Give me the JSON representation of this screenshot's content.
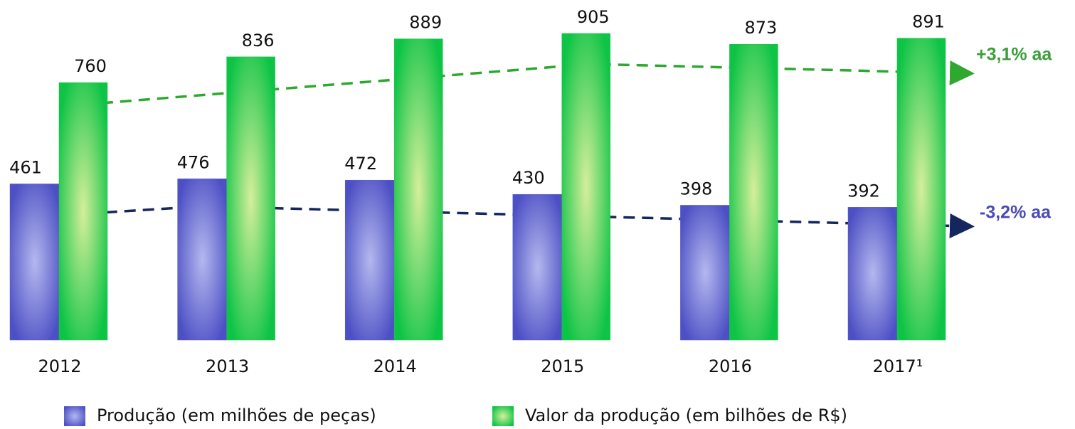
{
  "chart_data": {
    "type": "bar",
    "categories": [
      "2012",
      "2013",
      "2014",
      "2015",
      "2016",
      "2017¹"
    ],
    "series": [
      {
        "name": "Produção (em milhões de peças)",
        "color": "#5a5ecf",
        "values": [
          461,
          476,
          472,
          430,
          398,
          392
        ]
      },
      {
        "name": "Valor da produção (em bilhões de R$)",
        "color": "#1ec44c",
        "values": [
          760,
          836,
          889,
          905,
          873,
          891
        ]
      }
    ],
    "annotations": [
      "+3,1% aa",
      "-3,2% aa"
    ]
  }
}
